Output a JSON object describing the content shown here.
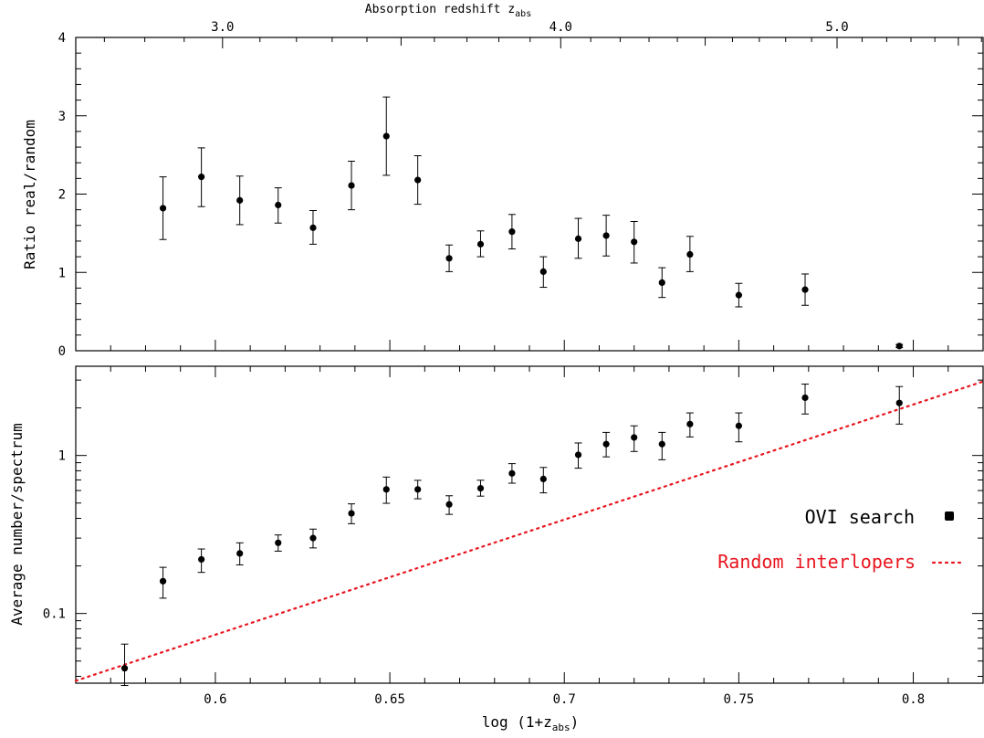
{
  "chart_data": {
    "type": "scatter",
    "top_axis": {
      "label_main": "Absorption redshift z",
      "label_sub": "abs",
      "ticks": [
        "3.0",
        "4.0",
        "5.0"
      ],
      "tick_values": [
        3.0,
        4.0,
        5.0
      ]
    },
    "xaxis": {
      "label_main": "log (1+z",
      "label_sub": "abs",
      "label_close": ")",
      "range": [
        0.56,
        0.82
      ],
      "ticks": [
        "0.6",
        "0.65",
        "0.7",
        "0.75",
        "0.8"
      ],
      "tick_values": [
        0.6,
        0.65,
        0.7,
        0.75,
        0.8
      ]
    },
    "top_panel": {
      "ylabel": "Ratio real/random",
      "ylim": [
        0,
        4
      ],
      "ticks": [
        "0",
        "1",
        "2",
        "3",
        "4"
      ],
      "tick_values": [
        0,
        1,
        2,
        3,
        4
      ],
      "points": [
        {
          "x": 0.585,
          "y": 1.82,
          "lo": 1.42,
          "hi": 2.22
        },
        {
          "x": 0.596,
          "y": 2.22,
          "lo": 1.84,
          "hi": 2.59
        },
        {
          "x": 0.607,
          "y": 1.92,
          "lo": 1.61,
          "hi": 2.23
        },
        {
          "x": 0.618,
          "y": 1.86,
          "lo": 1.63,
          "hi": 2.08
        },
        {
          "x": 0.628,
          "y": 1.57,
          "lo": 1.36,
          "hi": 1.79
        },
        {
          "x": 0.639,
          "y": 2.11,
          "lo": 1.8,
          "hi": 2.42
        },
        {
          "x": 0.649,
          "y": 2.74,
          "lo": 2.24,
          "hi": 3.24
        },
        {
          "x": 0.658,
          "y": 2.18,
          "lo": 1.87,
          "hi": 2.49
        },
        {
          "x": 0.667,
          "y": 1.18,
          "lo": 1.01,
          "hi": 1.35
        },
        {
          "x": 0.676,
          "y": 1.36,
          "lo": 1.2,
          "hi": 1.53
        },
        {
          "x": 0.685,
          "y": 1.52,
          "lo": 1.3,
          "hi": 1.74
        },
        {
          "x": 0.694,
          "y": 1.01,
          "lo": 0.81,
          "hi": 1.2
        },
        {
          "x": 0.704,
          "y": 1.43,
          "lo": 1.18,
          "hi": 1.69
        },
        {
          "x": 0.712,
          "y": 1.47,
          "lo": 1.21,
          "hi": 1.73
        },
        {
          "x": 0.72,
          "y": 1.39,
          "lo": 1.12,
          "hi": 1.65
        },
        {
          "x": 0.728,
          "y": 0.87,
          "lo": 0.68,
          "hi": 1.06
        },
        {
          "x": 0.736,
          "y": 1.23,
          "lo": 1.01,
          "hi": 1.46
        },
        {
          "x": 0.75,
          "y": 0.71,
          "lo": 0.56,
          "hi": 0.86
        },
        {
          "x": 0.769,
          "y": 0.78,
          "lo": 0.58,
          "hi": 0.98
        },
        {
          "x": 0.796,
          "y": 0.06,
          "lo": 0.04,
          "hi": 0.08
        }
      ]
    },
    "bottom_panel": {
      "ylabel": "Average number/spectrum",
      "scale": "log",
      "ylim": [
        0.0362,
        3.67
      ],
      "ticks": [
        "0.1",
        "1"
      ],
      "tick_values": [
        0.1,
        1
      ],
      "points": [
        {
          "x": 0.574,
          "y": 0.045,
          "lo": 0.035,
          "hi": 0.064
        },
        {
          "x": 0.585,
          "y": 0.16,
          "lo": 0.125,
          "hi": 0.196
        },
        {
          "x": 0.596,
          "y": 0.22,
          "lo": 0.182,
          "hi": 0.256
        },
        {
          "x": 0.607,
          "y": 0.24,
          "lo": 0.203,
          "hi": 0.28
        },
        {
          "x": 0.618,
          "y": 0.28,
          "lo": 0.248,
          "hi": 0.314
        },
        {
          "x": 0.628,
          "y": 0.3,
          "lo": 0.26,
          "hi": 0.342
        },
        {
          "x": 0.639,
          "y": 0.43,
          "lo": 0.37,
          "hi": 0.494
        },
        {
          "x": 0.649,
          "y": 0.61,
          "lo": 0.498,
          "hi": 0.73
        },
        {
          "x": 0.658,
          "y": 0.61,
          "lo": 0.532,
          "hi": 0.696
        },
        {
          "x": 0.667,
          "y": 0.49,
          "lo": 0.424,
          "hi": 0.556
        },
        {
          "x": 0.676,
          "y": 0.62,
          "lo": 0.553,
          "hi": 0.697
        },
        {
          "x": 0.685,
          "y": 0.77,
          "lo": 0.668,
          "hi": 0.888
        },
        {
          "x": 0.694,
          "y": 0.71,
          "lo": 0.58,
          "hi": 0.84
        },
        {
          "x": 0.704,
          "y": 1.01,
          "lo": 0.831,
          "hi": 1.2
        },
        {
          "x": 0.712,
          "y": 1.18,
          "lo": 0.98,
          "hi": 1.4
        },
        {
          "x": 0.72,
          "y": 1.3,
          "lo": 1.06,
          "hi": 1.54
        },
        {
          "x": 0.728,
          "y": 1.18,
          "lo": 0.94,
          "hi": 1.4
        },
        {
          "x": 0.736,
          "y": 1.58,
          "lo": 1.31,
          "hi": 1.86
        },
        {
          "x": 0.75,
          "y": 1.54,
          "lo": 1.22,
          "hi": 1.86
        },
        {
          "x": 0.769,
          "y": 2.32,
          "lo": 1.83,
          "hi": 2.83
        },
        {
          "x": 0.796,
          "y": 2.15,
          "lo": 1.58,
          "hi": 2.73
        }
      ],
      "random_line": {
        "x": [
          0.56,
          0.82
        ],
        "y": [
          0.0375,
          2.94
        ]
      },
      "legend": {
        "placement": "right",
        "points_label": "OVI search",
        "line_label": "Random interlopers",
        "line_color": "#e8141e"
      }
    }
  }
}
